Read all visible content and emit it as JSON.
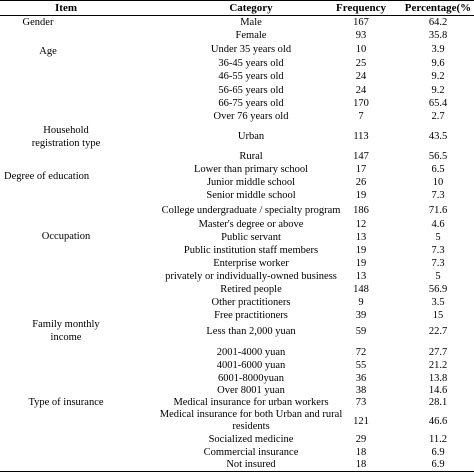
{
  "header": {
    "item": "Item",
    "category": "Category",
    "frequency": "Frequency",
    "percentage": "Percentage(%"
  },
  "items": {
    "gender": "Gender",
    "age": "Age",
    "household_line1": "Household",
    "household_line2": "registration type",
    "education": "Degree of education",
    "occupation": "Occupation",
    "income_line1": "Family monthly",
    "income_line2": "income",
    "insurance": "Type of insurance"
  },
  "rows": [
    {
      "category": "Male",
      "frequency": "167",
      "percentage": "64.2"
    },
    {
      "category": "Female",
      "frequency": "93",
      "percentage": "35.8"
    },
    {
      "category": "Under 35 years old",
      "frequency": "10",
      "percentage": "3.9"
    },
    {
      "category": "36-45 years old",
      "frequency": "25",
      "percentage": "9.6"
    },
    {
      "category": "46-55 years old",
      "frequency": "24",
      "percentage": "9.2"
    },
    {
      "category": "56-65 years old",
      "frequency": "24",
      "percentage": "9.2"
    },
    {
      "category": "66-75 years old",
      "frequency": "170",
      "percentage": "65.4"
    },
    {
      "category": "Over 76 years old",
      "frequency": "7",
      "percentage": "2.7"
    },
    {
      "category": "Urban",
      "frequency": "113",
      "percentage": "43.5"
    },
    {
      "category": "Rural",
      "frequency": "147",
      "percentage": "56.5"
    },
    {
      "category": "Lower than primary school",
      "frequency": "17",
      "percentage": "6.5"
    },
    {
      "category": "Junior middle school",
      "frequency": "26",
      "percentage": "10"
    },
    {
      "category": "Senior middle school",
      "frequency": "19",
      "percentage": "7.3"
    },
    {
      "category": "College undergraduate / specialty program",
      "frequency": "186",
      "percentage": "71.6"
    },
    {
      "category": "Master's degree or above",
      "frequency": "12",
      "percentage": "4.6"
    },
    {
      "category": "Public servant",
      "frequency": "13",
      "percentage": "5"
    },
    {
      "category": "Public institution staff members",
      "frequency": "19",
      "percentage": "7.3"
    },
    {
      "category": "Enterprise worker",
      "frequency": "19",
      "percentage": "7.3"
    },
    {
      "category": "privately or individually-owned business",
      "frequency": "13",
      "percentage": "5"
    },
    {
      "category": "Retired people",
      "frequency": "148",
      "percentage": "56.9"
    },
    {
      "category": "Other practitioners",
      "frequency": "9",
      "percentage": "3.5"
    },
    {
      "category": "Free practitioners",
      "frequency": "39",
      "percentage": "15"
    },
    {
      "category": "Less than 2,000 yuan",
      "frequency": "59",
      "percentage": "22.7"
    },
    {
      "category": "2001-4000 yuan",
      "frequency": "72",
      "percentage": "27.7"
    },
    {
      "category": "4001-6000 yuan",
      "frequency": "55",
      "percentage": "21.2"
    },
    {
      "category": "6001-8000yuan",
      "frequency": "36",
      "percentage": "13.8"
    },
    {
      "category": "Over 8001 yuan",
      "frequency": "38",
      "percentage": "14.6"
    },
    {
      "category": "Medical insurance for urban workers",
      "frequency": "73",
      "percentage": "28.1"
    },
    {
      "category_line1": "Medical insurance for both Urban and rural",
      "category_line2": "residents",
      "frequency": "121",
      "percentage": "46.6"
    },
    {
      "category": "Socialized medicine",
      "frequency": "29",
      "percentage": "11.2"
    },
    {
      "category": "Commercial insurance",
      "frequency": "18",
      "percentage": "6.9"
    },
    {
      "category": "Not insured",
      "frequency": "18",
      "percentage": "6.9"
    }
  ]
}
